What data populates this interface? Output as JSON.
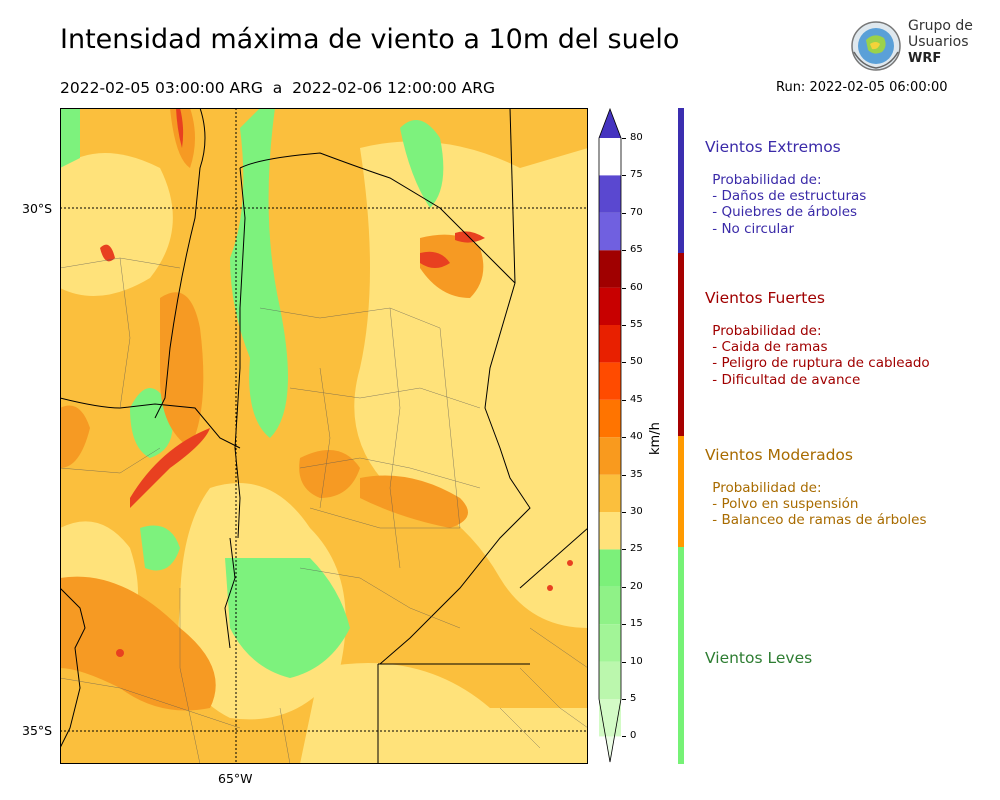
{
  "title": "Intensidad máxima de viento a 10m del suelo",
  "period": "2022-02-05 03:00:00 ARG  a  2022-02-06 12:00:00 ARG",
  "run": "Run: 2022-02-05 06:00:00",
  "logo": {
    "line1": "Grupo de",
    "line2": "Usuarios",
    "line3": "WRF"
  },
  "map": {
    "lat_labels": [
      "30°S",
      "35°S"
    ],
    "lon_labels": [
      "65°W"
    ],
    "colors": {
      "light": "#ffe27a",
      "moderate": "#fbbf3d",
      "strong": "#f69a23",
      "green": "#7df27d",
      "lightgreen": "#bdf5b1",
      "red": "#e84020",
      "darkred": "#b80000",
      "boundary": "#000000"
    }
  },
  "colorbar": {
    "unit": "km/h",
    "ticks": [
      "0",
      "5",
      "10",
      "15",
      "20",
      "25",
      "30",
      "35",
      "40",
      "45",
      "50",
      "55",
      "60",
      "65",
      "70",
      "75",
      "80"
    ],
    "colors": [
      "#ecfde6",
      "#d3fbc6",
      "#bbf7ad",
      "#a2f597",
      "#8ff287",
      "#7cf07a",
      "#ffe27a",
      "#fbbf3d",
      "#f99a1e",
      "#ff7400",
      "#ff4b00",
      "#e82000",
      "#c80000",
      "#a00000",
      "#7060e0",
      "#5a48d0",
      "#4534c0"
    ]
  },
  "categories": [
    {
      "title": "Vientos Extremos",
      "color": "#3a2aa8",
      "body": " Probabilidad de:\n - Daños de estructuras\n - Quiebres de árboles\n - No circular",
      "bar": "#3b2eb0"
    },
    {
      "title": "Vientos Fuertes",
      "color": "#a00000",
      "body": " Probabilidad de:\n - Caida de ramas\n - Peligro de ruptura de cableado\n - Dificultad de avance",
      "bar": "#a60000"
    },
    {
      "title": "Vientos Moderados",
      "color": "#a86b00",
      "body": " Probabilidad de:\n - Polvo en suspensión\n - Balanceo de ramas de árboles",
      "bar": "#ff9a00"
    },
    {
      "title": "Vientos Leves",
      "color": "#2e7d32",
      "body": "",
      "bar": "#76f276"
    }
  ]
}
